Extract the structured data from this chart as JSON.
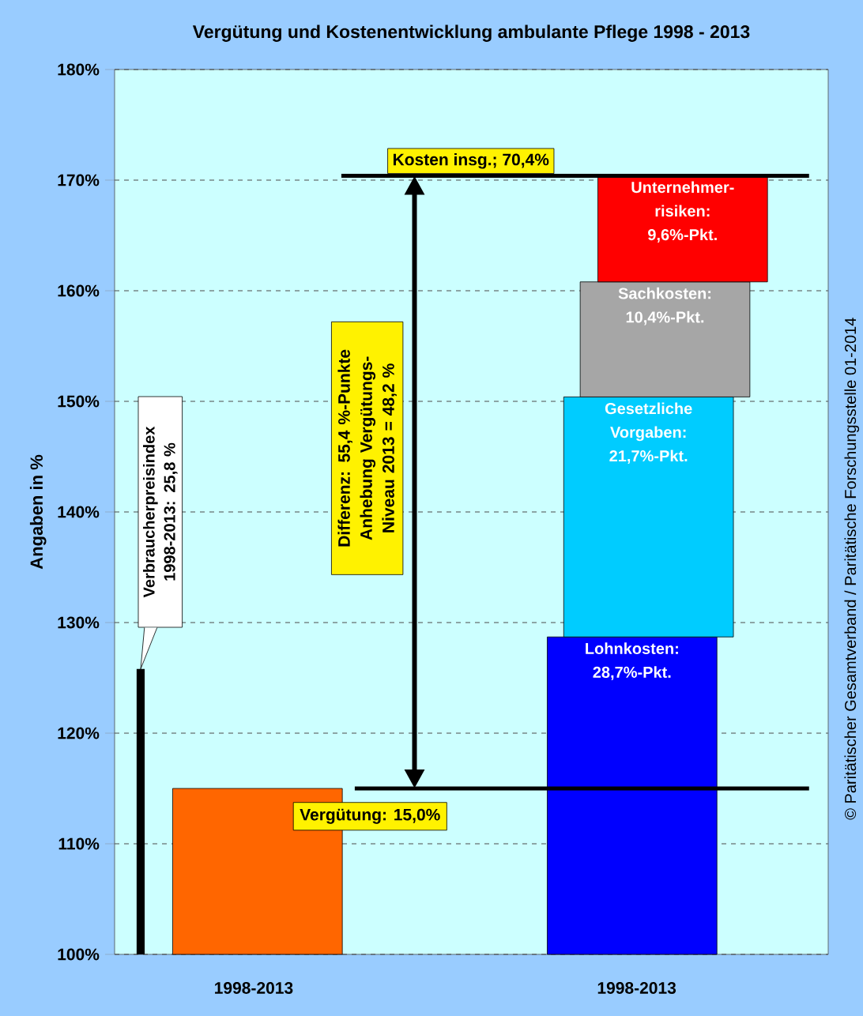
{
  "chart_data": {
    "type": "bar",
    "title": "Vergütung und Kostenentwicklung ambulante Pflege 1998 - 2013",
    "ylabel": "Angaben in %",
    "categories": [
      "1998-2013",
      "1998-2013"
    ],
    "series": [
      {
        "color": "#000000",
        "base": [
          100,
          null
        ],
        "values": [
          25.8,
          null
        ]
      },
      {
        "color": "#ff6600",
        "base": [
          100,
          null
        ],
        "values": [
          15,
          null
        ]
      },
      {
        "name": "Lohnkosten:",
        "color": "#0000ff",
        "base": [
          null,
          100
        ],
        "values": [
          null,
          28.7
        ],
        "value_labels": [
          null,
          "28,7%-Pkt."
        ]
      },
      {
        "name": "Gesetzliche Vorgaben:",
        "color": "#00ccff",
        "base": [
          null,
          128.7
        ],
        "values": [
          null,
          21.7
        ],
        "value_labels": [
          null,
          "21,7%-Pkt."
        ]
      },
      {
        "name": "Sachkosten:",
        "color": "#a6a6a6",
        "base": [
          null,
          150.4
        ],
        "values": [
          null,
          10.4
        ],
        "value_labels": [
          null,
          "10,4%-Pkt."
        ]
      },
      {
        "name": "Unternehmer-risiken:",
        "color": "#ff0000",
        "base": [
          null,
          160.8
        ],
        "values": [
          null,
          9.6
        ],
        "value_labels": [
          null,
          "9,6%-Pkt."
        ]
      }
    ],
    "ylim": [
      100,
      180
    ],
    "yticks": [
      {
        "value": 100,
        "label": "100%"
      },
      {
        "value": 110,
        "label": "110%"
      },
      {
        "value": 120,
        "label": "120%"
      },
      {
        "value": 130,
        "label": "130%"
      },
      {
        "value": 140,
        "label": "140%"
      },
      {
        "value": 150,
        "label": "150%"
      },
      {
        "value": 160,
        "label": "160%"
      },
      {
        "value": 170,
        "label": "170%"
      },
      {
        "value": 180,
        "label": "180%"
      }
    ],
    "grid": "y",
    "ref_lines": [
      {
        "axis": "y",
        "value": 170.4,
        "label": "Kosten insg.; 70,4%"
      },
      {
        "axis": "y",
        "value": 115
      }
    ],
    "annotations": [
      "Differenz: 55,4 %-Punkte Anhebung Vergütungs-Niveau 2013 = 48,2 %",
      "© Paritätischer Gesamtverband / Paritätische Forschungsstelle 01-2014",
      "Verbraucherpreisindex 1998-2013: 25,8 %",
      "Vergütung: 15,0%"
    ]
  }
}
